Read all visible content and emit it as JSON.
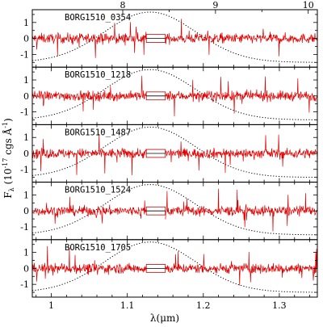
{
  "chart_data": {
    "type": "line",
    "xlabel": "λ(μm)",
    "ylabel": "F_λ (10^-17 cgs Å^-1)",
    "xlim": [
      0.975,
      1.35
    ],
    "ylim": [
      -1.8,
      1.8
    ],
    "x_ticks": [
      "1",
      "1.1",
      "1.2",
      "1.3"
    ],
    "x_tick_values": [
      1.0,
      1.1,
      1.2,
      1.3
    ],
    "y_ticks": [
      "1",
      "0",
      "-1"
    ],
    "y_tick_values": [
      1,
      0,
      -1
    ],
    "top_axis": {
      "label_values": [
        8,
        9,
        10
      ],
      "tick_labels": [
        "8",
        "9",
        "10"
      ],
      "positions_um": [
        1.094,
        1.216,
        1.338
      ],
      "minor_positions_um": [
        1.155,
        1.277
      ]
    },
    "grism_gap": [
      1.125,
      1.15
    ],
    "panels": [
      {
        "label": "BORG1510_0354"
      },
      {
        "label": "BORG1510_1218"
      },
      {
        "label": "BORG1510_1487"
      },
      {
        "label": "BORG1510_1524"
      },
      {
        "label": "BORG1510_1705"
      }
    ],
    "series": [
      {
        "name": "flux",
        "color": "#e00000",
        "description_values": "noise spectrum around 0, amplitude ~0.3 with spikes to ±1.5"
      },
      {
        "name": "error",
        "color": "#000000",
        "values": "zero level"
      },
      {
        "name": "throughput",
        "style": "dotted",
        "color": "#000000",
        "peak_um": 1.13,
        "ymin": -1.5,
        "ymax": 1.65
      }
    ]
  }
}
